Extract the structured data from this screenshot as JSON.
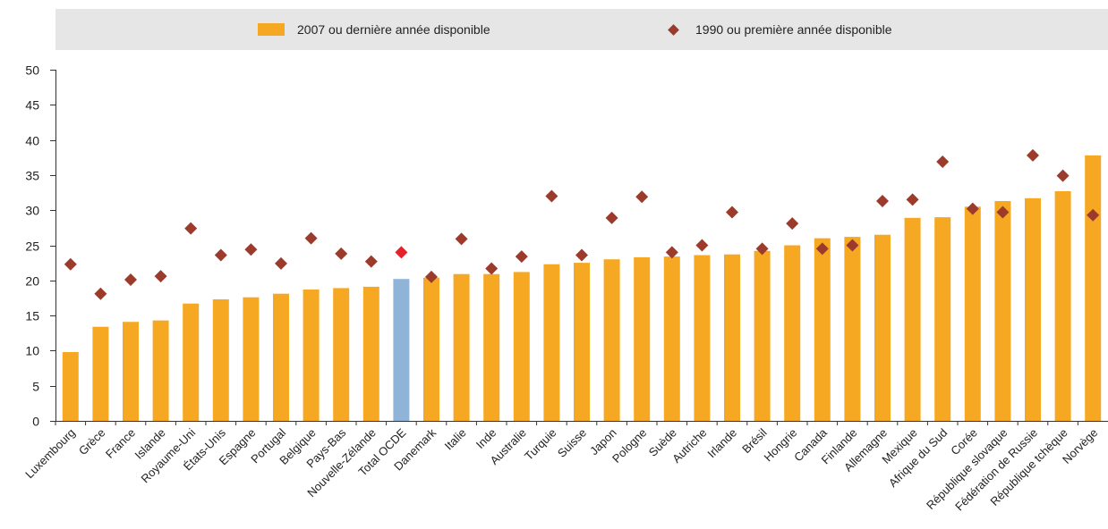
{
  "legend": {
    "bar_label": "2007 ou dernière année disponible",
    "marker_label": "1990 ou première année disponible"
  },
  "colors": {
    "bar": "#f7a823",
    "bar_highlight": "#8fb4d8",
    "marker": "#9c3b2b",
    "marker_highlight": "#e3222c",
    "legend_background": "#e6e6e6"
  },
  "chart_data": {
    "type": "bar",
    "title": "",
    "xlabel": "",
    "ylabel": "",
    "ylim": [
      0,
      50
    ],
    "yticks": [
      0,
      5,
      10,
      15,
      20,
      25,
      30,
      35,
      40,
      45,
      50
    ],
    "grid": false,
    "legend_position": "top",
    "highlight_category": "Total OCDE",
    "categories": [
      "Luxembourg",
      "Grèce",
      "France",
      "Islande",
      "Royaume-Uni",
      "États-Unis",
      "Espagne",
      "Portugal",
      "Belgique",
      "Pays-Bas",
      "Nouvelle-Zélande",
      "Total OCDE",
      "Danemark",
      "Italie",
      "Inde",
      "Australie",
      "Turquie",
      "Suisse",
      "Japon",
      "Pologne",
      "Suède",
      "Autriche",
      "Irlande",
      "Brésil",
      "Hongrie",
      "Canada",
      "Finlande",
      "Allemagne",
      "Mexique",
      "Afrique du Sud",
      "Corée",
      "République slovaque",
      "Fédération de Russie",
      "République tchèque",
      "Norvège"
    ],
    "series": [
      {
        "name": "2007 ou dernière année disponible",
        "type": "bar",
        "values": [
          9.8,
          13.4,
          14.1,
          14.3,
          16.7,
          17.3,
          17.6,
          18.1,
          18.7,
          18.9,
          19.1,
          20.2,
          20.4,
          20.9,
          20.9,
          21.2,
          22.3,
          22.5,
          23.0,
          23.3,
          23.4,
          23.6,
          23.7,
          24.2,
          25.0,
          26.0,
          26.2,
          26.5,
          28.9,
          29.0,
          30.5,
          31.3,
          31.7,
          32.7,
          37.8
        ]
      },
      {
        "name": "1990 ou première année disponible",
        "type": "scatter",
        "values": [
          22.3,
          18.1,
          20.1,
          20.6,
          27.4,
          23.6,
          24.4,
          22.4,
          26.0,
          23.8,
          22.7,
          24.0,
          20.5,
          25.9,
          21.7,
          23.4,
          32.0,
          23.6,
          28.9,
          31.9,
          24.0,
          25.0,
          29.7,
          24.5,
          28.1,
          24.5,
          25.0,
          31.3,
          31.5,
          36.9,
          30.2,
          29.7,
          37.8,
          34.9,
          29.3
        ]
      }
    ]
  }
}
